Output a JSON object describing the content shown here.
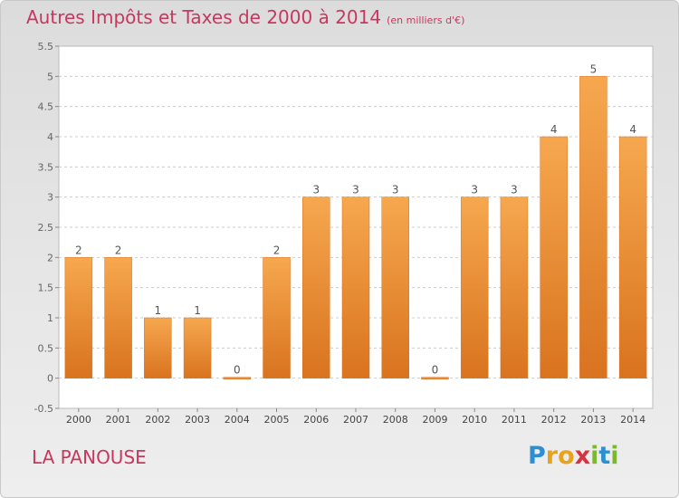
{
  "title": "Autres Impôts et Taxes de 2000 à 2014",
  "unit_note": "(en milliers d'€)",
  "commune": "LA PANOUSE",
  "logo": {
    "text": "Proxiti",
    "letters": [
      {
        "char": "P",
        "color": "#2c8fd1"
      },
      {
        "char": "r",
        "color": "#e8a21b"
      },
      {
        "char": "o",
        "color": "#e8a21b"
      },
      {
        "char": "x",
        "color": "#d3343f"
      },
      {
        "char": "i",
        "color": "#7cb82f"
      },
      {
        "char": "t",
        "color": "#2c8fd1"
      },
      {
        "char": "i",
        "color": "#7cb82f"
      }
    ]
  },
  "colors": {
    "bar_light": "#f6a84f",
    "bar_dark": "#d9731f",
    "title": "#c8385e",
    "axis": "#666666"
  },
  "chart_data": {
    "type": "bar",
    "categories": [
      "2000",
      "2001",
      "2002",
      "2003",
      "2004",
      "2005",
      "2006",
      "2007",
      "2008",
      "2009",
      "2010",
      "2011",
      "2012",
      "2013",
      "2014"
    ],
    "values": [
      2,
      2,
      1,
      1,
      0,
      2,
      3,
      3,
      3,
      0,
      3,
      3,
      4,
      5,
      4
    ],
    "data_labels": [
      "2",
      "2",
      "1",
      "1",
      "0",
      "2",
      "3",
      "3",
      "3",
      "0",
      "3",
      "3",
      "4",
      "5",
      "4"
    ],
    "ylim": [
      -0.5,
      5.5
    ],
    "yticks": [
      "-0.5",
      "0",
      "0.5",
      "1",
      "1.5",
      "2",
      "2.5",
      "3",
      "3.5",
      "4",
      "4.5",
      "5",
      "5.5"
    ],
    "ytick_values": [
      -0.5,
      0,
      0.5,
      1,
      1.5,
      2,
      2.5,
      3,
      3.5,
      4,
      4.5,
      5,
      5.5
    ],
    "grid": "horizontal dashed",
    "legend": "none"
  }
}
